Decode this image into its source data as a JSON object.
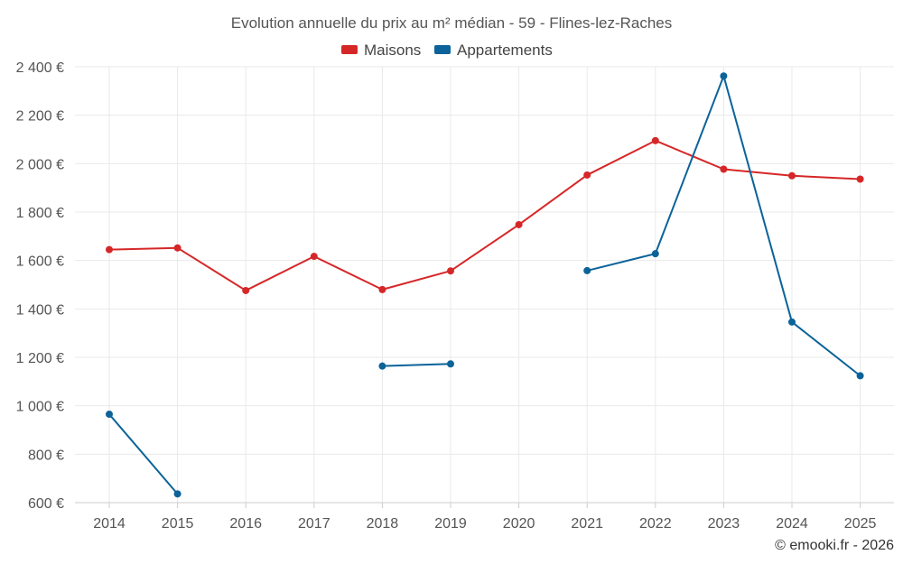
{
  "chart_data": {
    "type": "line",
    "title": "Evolution annuelle du prix au m² médian - 59 - Flines-lez-Raches",
    "categories": [
      "2014",
      "2015",
      "2016",
      "2017",
      "2018",
      "2019",
      "2020",
      "2021",
      "2022",
      "2023",
      "2024",
      "2025"
    ],
    "ylim": [
      600,
      2400
    ],
    "yticks": [
      600,
      800,
      1000,
      1200,
      1400,
      1600,
      1800,
      2000,
      2200,
      2400
    ],
    "ytick_labels": [
      "600 €",
      "800 €",
      "1 000 €",
      "1 200 €",
      "1 400 €",
      "1 600 €",
      "1 800 €",
      "2 000 €",
      "2 200 €",
      "2 400 €"
    ],
    "legend_position": "top-center",
    "grid": true,
    "series": [
      {
        "name": "Maisons",
        "color": "#d62728",
        "values": [
          1645,
          1652,
          1476,
          1617,
          1480,
          1557,
          1748,
          1953,
          2095,
          1977,
          1950,
          1936
        ]
      },
      {
        "name": "Appartements",
        "color": "#0b6399",
        "values": [
          965,
          636,
          null,
          null,
          1164,
          1173,
          null,
          1558,
          1628,
          2362,
          1346,
          1124
        ]
      }
    ]
  },
  "credit": "© emooki.fr - 2026"
}
